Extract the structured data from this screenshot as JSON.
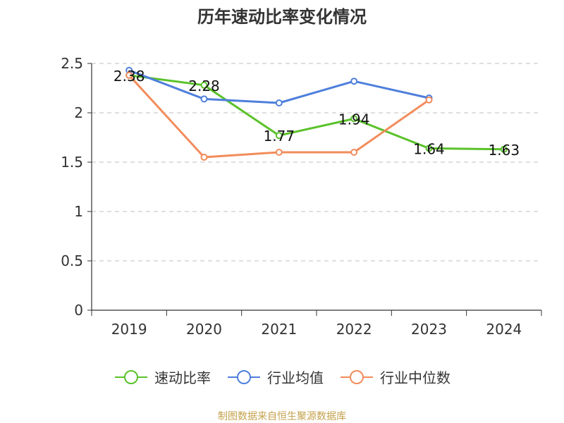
{
  "chart_data": {
    "type": "line",
    "title": "历年速动比率变化情况",
    "categories": [
      "2019",
      "2020",
      "2021",
      "2022",
      "2023",
      "2024"
    ],
    "ylim": [
      0,
      2.5
    ],
    "yticks": [
      "0",
      "0.5",
      "1",
      "1.5",
      "2",
      "2.5"
    ],
    "ytick_values": [
      0,
      0.5,
      1,
      1.5,
      2,
      2.5
    ],
    "grid": true,
    "legend_position": "bottom",
    "series": [
      {
        "name": "速动比率",
        "color": "#5ac22a",
        "values": [
          2.38,
          2.28,
          1.77,
          1.94,
          1.64,
          1.63
        ],
        "labels": [
          "2.38",
          "2.28",
          "1.77",
          "1.94",
          "1.64",
          "1.63"
        ]
      },
      {
        "name": "行业均值",
        "color": "#4e7fdc",
        "values": [
          2.43,
          2.14,
          2.1,
          2.32,
          2.15,
          null
        ]
      },
      {
        "name": "行业中位数",
        "color": "#f28c5b",
        "values": [
          2.38,
          1.55,
          1.6,
          1.6,
          2.13,
          null
        ]
      }
    ]
  },
  "footer": {
    "source": "制图数据来自恒生聚源数据库"
  }
}
